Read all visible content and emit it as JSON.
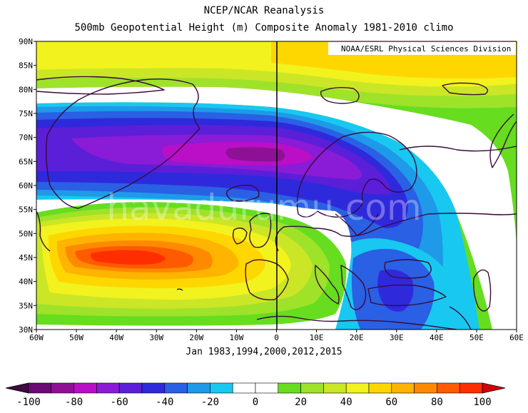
{
  "title": "NCEP/NCAR Reanalysis",
  "subtitle": "500mb Geopotential Height (m) Composite Anomaly 1981-2010 climo",
  "credit": "NOAA/ESRL Physical Sciences Division",
  "footer": "Jan 1983,1994,2000,2012,2015",
  "watermark": "havadurumu.com",
  "lon_labels": [
    "60W",
    "50W",
    "40W",
    "30W",
    "20W",
    "10W",
    "0",
    "10E",
    "20E",
    "30E",
    "40E",
    "50E",
    "60E"
  ],
  "lat_labels": [
    "90N",
    "85N",
    "80N",
    "75N",
    "70N",
    "65N",
    "60N",
    "55N",
    "50N",
    "45N",
    "40N",
    "35N",
    "30N"
  ],
  "colorbar": {
    "labels": [
      "-100",
      "-80",
      "-60",
      "-40",
      "-20",
      "0",
      "20",
      "40",
      "60",
      "80",
      "100"
    ],
    "colors": [
      "#6a0a72",
      "#8e1195",
      "#ba0fc6",
      "#8a1bd6",
      "#5b1fd8",
      "#2f29dc",
      "#2960e4",
      "#1e9ae8",
      "#18c8f0",
      "#ffffff",
      "#ffffff",
      "#66dd1f",
      "#9fe22a",
      "#cbe627",
      "#f2f21e",
      "#ffd700",
      "#ffb400",
      "#ff8a00",
      "#ff5a00",
      "#ff2e00"
    ],
    "left_arrow_color": "#3e0945",
    "right_arrow_color": "#d40000"
  },
  "anomaly_colors": {
    "white": "#ffffff",
    "g20": "#66dd1f",
    "g30": "#9fe22a",
    "y40": "#cbe627",
    "y50": "#f2f21e",
    "y60": "#ffd700",
    "o70": "#ffb400",
    "o80": "#ff8a00",
    "r90": "#ff5a00",
    "r100": "#ff2e00",
    "c20": "#18c8f0",
    "c30": "#1e9ae8",
    "b40": "#2960e4",
    "b50": "#2f29dc",
    "v60": "#5b1fd8",
    "v70": "#8a1bd6",
    "m80": "#ba0fc6",
    "coast": "#3a0a3a"
  }
}
